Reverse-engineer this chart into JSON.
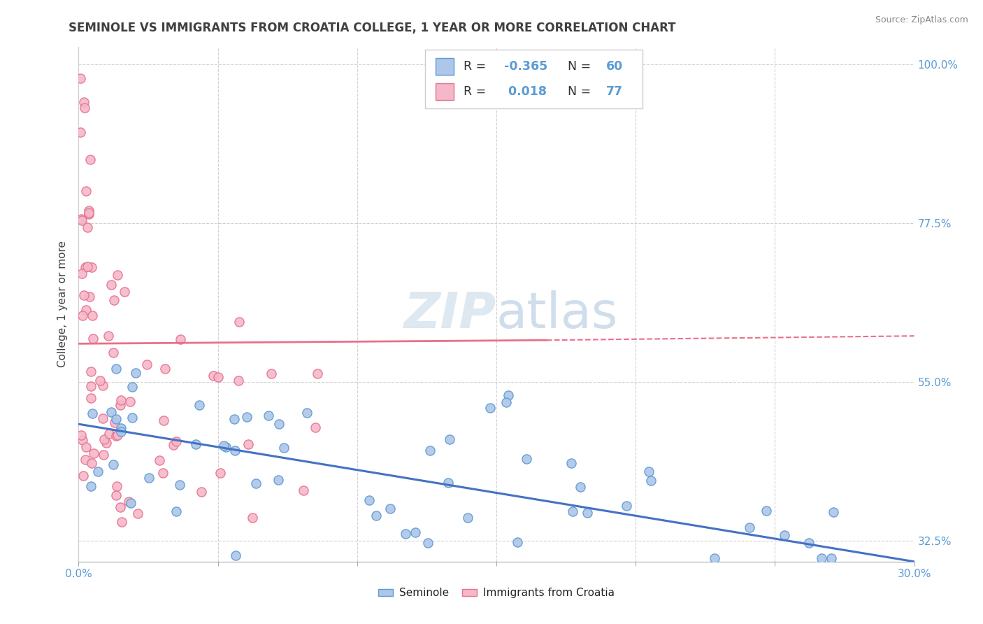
{
  "title": "SEMINOLE VS IMMIGRANTS FROM CROATIA COLLEGE, 1 YEAR OR MORE CORRELATION CHART",
  "source": "Source: ZipAtlas.com",
  "ylabel": "College, 1 year or more",
  "xlim": [
    0.0,
    0.3
  ],
  "ylim": [
    0.295,
    1.025
  ],
  "xtick_positions": [
    0.0,
    0.05,
    0.1,
    0.15,
    0.2,
    0.25,
    0.3
  ],
  "xtick_labels": [
    "0.0%",
    "",
    "",
    "",
    "",
    "",
    "30.0%"
  ],
  "ytick_positions": [
    0.325,
    0.55,
    0.775,
    1.0
  ],
  "ytick_labels": [
    "32.5%",
    "55.0%",
    "77.5%",
    "100.0%"
  ],
  "series1_face": "#aec6e8",
  "series1_edge": "#5b9bd5",
  "series2_face": "#f4b8c8",
  "series2_edge": "#e87090",
  "line1_color": "#4472c4",
  "line2_color": "#e8708a",
  "background_color": "#ffffff",
  "grid_color": "#cccccc",
  "watermark_color": "#dde8f0",
  "title_color": "#404040",
  "source_color": "#888888",
  "tick_color": "#5b9bd5",
  "ylabel_color": "#404040",
  "legend_text_color": "#333333",
  "legend_val_color": "#5b9bd5"
}
